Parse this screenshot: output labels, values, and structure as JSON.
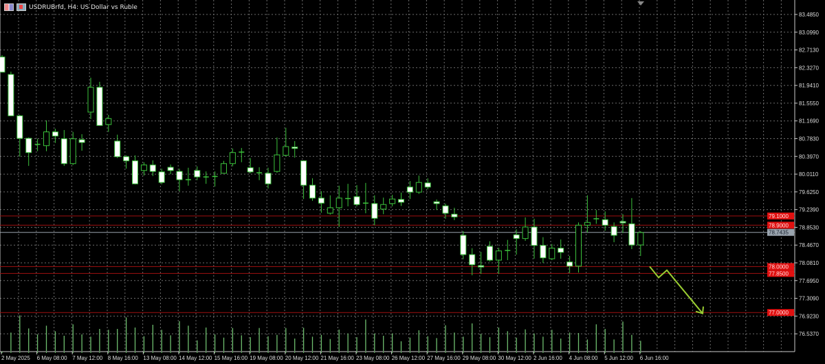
{
  "header": {
    "title": "USDRUBrfd, H4:  US Dollar vs Ruble",
    "icons": [
      "symbol-flag-icon",
      "chart-indicator-icon"
    ]
  },
  "colors": {
    "background": "#000000",
    "grid": "#6e6e6e",
    "candle_border": "#3cc43c",
    "bear_fill": "#ffffff",
    "bull_fill": "#000000",
    "volume": "#6fbf6f",
    "level_line": "#a01010",
    "level_label": "#e01010",
    "current_price": "#9aa4ae",
    "arrow": "#9acd32"
  },
  "chart_data": {
    "type": "candlestick",
    "symbol": "USDRUBrfd",
    "timeframe": "H4",
    "ylim": [
      76.35,
      83.8
    ],
    "y_ticks": [
      "83.4850",
      "83.0990",
      "82.7130",
      "82.3270",
      "81.9410",
      "81.5550",
      "81.1690",
      "80.7830",
      "80.3970",
      "80.0110",
      "79.6250",
      "79.2390",
      "78.8530",
      "78.4670",
      "78.0810",
      "77.6950",
      "77.3090",
      "76.9230",
      "76.5370"
    ],
    "x_ticks": [
      "2 May 2025",
      "6 May 08:00",
      "7 May 12:00",
      "8 May 16:00",
      "13 May 08:00",
      "14 May 12:00",
      "15 May 16:00",
      "19 May 08:00",
      "20 May 12:00",
      "21 May 16:00",
      "23 May 08:00",
      "26 May 12:00",
      "27 May 16:00",
      "29 May 08:00",
      "30 May 12:00",
      "2 Jun 16:00",
      "4 Jun 08:00",
      "5 Jun 12:00",
      "6 Jun 16:00"
    ],
    "grid": true,
    "ohlc": [
      [
        82.56,
        82.6,
        82.23,
        82.23
      ],
      [
        82.18,
        82.24,
        81.28,
        81.28
      ],
      [
        81.28,
        81.3,
        80.39,
        80.79
      ],
      [
        80.79,
        80.81,
        80.19,
        80.48
      ],
      [
        80.66,
        80.78,
        80.51,
        80.66
      ],
      [
        80.63,
        81.18,
        80.51,
        80.93
      ],
      [
        80.93,
        81.0,
        80.69,
        80.84
      ],
      [
        80.78,
        80.97,
        80.19,
        80.24
      ],
      [
        80.24,
        80.93,
        80.21,
        80.78
      ],
      [
        80.76,
        80.88,
        80.52,
        80.7
      ],
      [
        81.36,
        82.11,
        81.21,
        81.9
      ],
      [
        81.9,
        82.02,
        81.07,
        81.07
      ],
      [
        81.09,
        81.3,
        80.93,
        81.22
      ],
      [
        80.73,
        80.87,
        80.36,
        80.39
      ],
      [
        80.39,
        80.42,
        80.13,
        80.3
      ],
      [
        80.3,
        80.42,
        79.79,
        79.8
      ],
      [
        80.09,
        80.27,
        79.98,
        80.21
      ],
      [
        80.21,
        80.31,
        79.97,
        80.07
      ],
      [
        80.06,
        80.13,
        79.79,
        79.83
      ],
      [
        80.16,
        80.22,
        80.01,
        80.09
      ],
      [
        80.07,
        80.13,
        79.64,
        79.89
      ],
      [
        79.89,
        80.15,
        79.76,
        79.88
      ],
      [
        80.09,
        80.18,
        79.88,
        79.95
      ],
      [
        79.95,
        80.07,
        79.8,
        79.95
      ],
      [
        79.95,
        80.07,
        79.74,
        79.96
      ],
      [
        80.03,
        80.3,
        80.03,
        80.24
      ],
      [
        80.24,
        80.57,
        80.18,
        80.48
      ],
      [
        80.49,
        80.58,
        80.27,
        80.49
      ],
      [
        80.15,
        80.36,
        80.03,
        80.06
      ],
      [
        80.04,
        80.16,
        79.88,
        80.03
      ],
      [
        80.03,
        80.15,
        79.7,
        79.8
      ],
      [
        80.07,
        80.81,
        80.04,
        80.43
      ],
      [
        80.42,
        81.02,
        80.4,
        80.61
      ],
      [
        80.6,
        80.73,
        80.37,
        80.57
      ],
      [
        80.3,
        80.31,
        79.47,
        79.77
      ],
      [
        79.77,
        79.92,
        79.43,
        79.49
      ],
      [
        79.49,
        79.64,
        79.17,
        79.38
      ],
      [
        79.16,
        79.55,
        79.13,
        79.28
      ],
      [
        79.28,
        79.76,
        78.86,
        79.49
      ],
      [
        79.48,
        79.8,
        79.31,
        79.47
      ],
      [
        79.52,
        79.77,
        79.31,
        79.35
      ],
      [
        79.38,
        79.82,
        79.16,
        79.38
      ],
      [
        79.37,
        79.55,
        78.9,
        79.05
      ],
      [
        79.25,
        79.5,
        79.14,
        79.35
      ],
      [
        79.37,
        79.56,
        79.31,
        79.47
      ],
      [
        79.46,
        79.61,
        79.32,
        79.4
      ],
      [
        79.73,
        79.86,
        79.47,
        79.62
      ],
      [
        79.62,
        79.98,
        79.58,
        79.83
      ],
      [
        79.82,
        79.92,
        79.68,
        79.73
      ],
      [
        79.41,
        79.46,
        79.23,
        79.37
      ],
      [
        79.32,
        79.37,
        79.04,
        79.16
      ],
      [
        79.14,
        79.28,
        79.01,
        79.08
      ],
      [
        78.68,
        78.77,
        78.16,
        78.26
      ],
      [
        78.26,
        78.4,
        77.81,
        78.04
      ],
      [
        78.02,
        78.32,
        77.84,
        77.99
      ],
      [
        78.44,
        78.55,
        78.11,
        78.14
      ],
      [
        78.14,
        78.41,
        77.84,
        78.34
      ],
      [
        78.35,
        78.58,
        78.14,
        78.35
      ],
      [
        78.69,
        78.81,
        78.26,
        78.61
      ],
      [
        78.61,
        79.07,
        78.56,
        78.86
      ],
      [
        78.86,
        79.04,
        78.17,
        78.46
      ],
      [
        78.46,
        78.64,
        78.08,
        78.19
      ],
      [
        78.17,
        78.49,
        78.14,
        78.4
      ],
      [
        78.4,
        78.59,
        78.17,
        78.31
      ],
      [
        78.1,
        78.23,
        77.86,
        78.01
      ],
      [
        78.01,
        78.96,
        77.87,
        78.9
      ],
      [
        78.9,
        79.55,
        78.74,
        78.96
      ],
      [
        79.04,
        79.23,
        78.93,
        79.04
      ],
      [
        79.02,
        79.2,
        78.78,
        78.9
      ],
      [
        78.87,
        78.96,
        78.53,
        78.68
      ],
      [
        78.98,
        79.14,
        78.73,
        78.95
      ],
      [
        78.93,
        79.49,
        78.38,
        78.47
      ],
      [
        78.47,
        78.77,
        78.23,
        78.74
      ]
    ],
    "volume_relative": [
      null,
      80,
      155,
      98,
      72,
      110,
      86,
      66,
      116,
      72,
      62,
      96,
      92,
      96,
      146,
      102,
      64,
      114,
      92,
      68,
      130,
      110,
      46,
      102,
      72,
      58,
      100,
      68,
      60,
      100,
      64,
      70,
      100,
      54,
      101,
      62,
      70,
      52,
      93,
      76,
      60,
      137,
      76,
      66,
      76,
      42,
      58,
      90,
      64,
      56,
      112,
      80,
      62,
      120,
      74,
      60,
      102,
      86,
      58,
      94,
      76,
      62,
      92,
      54,
      80,
      78,
      50,
      116,
      96,
      50,
      128,
      70,
      44
    ],
    "levels": [
      {
        "price": 79.1,
        "label": "79.1000"
      },
      {
        "price": 78.9,
        "label": "78.9000"
      },
      {
        "price": 78.0,
        "label": "78.0000"
      },
      {
        "price": 77.85,
        "label": "77.8500"
      },
      {
        "price": 77.0,
        "label": "77.0000"
      }
    ],
    "current_price": {
      "price": 78.7435,
      "label": "78.7435"
    },
    "annotation": {
      "type": "forecast-arrow",
      "direction": "down",
      "path_prices": [
        78.0,
        77.76,
        77.92,
        76.98
      ]
    }
  }
}
